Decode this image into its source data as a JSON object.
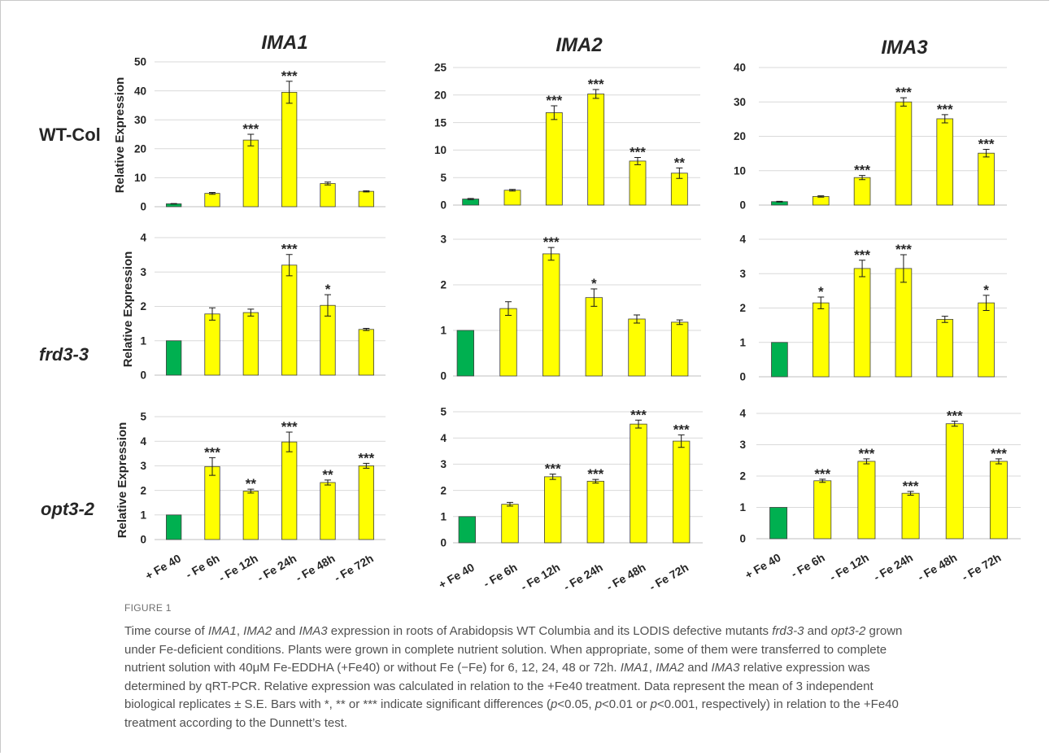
{
  "chart_data": {
    "type": "bar",
    "columns": [
      "IMA1",
      "IMA2",
      "IMA3"
    ],
    "rows": [
      "WT-Col",
      "frd3-3",
      "opt3-2"
    ],
    "ylabel": "Relative Expression",
    "categories": [
      "+ Fe 40",
      "- Fe 6h",
      "- Fe 12h",
      "- Fe 24h",
      "- Fe 48h",
      "- Fe 72h"
    ],
    "bar_colors": [
      "#00b050",
      "#ffff00",
      "#ffff00",
      "#ffff00",
      "#ffff00",
      "#ffff00"
    ],
    "bar_outline_color": "#404040",
    "grid": true,
    "panels": [
      {
        "values": [
          1.0,
          4.6,
          23.0,
          39.5,
          8.0,
          5.3
        ],
        "errors": [
          0.1,
          0.3,
          2.0,
          3.8,
          0.5,
          0.2
        ],
        "significance": [
          "",
          "",
          "***",
          "***",
          "",
          ""
        ],
        "ylim": [
          0,
          50
        ],
        "yticks": [
          0,
          10,
          20,
          30,
          40,
          50
        ]
      },
      {
        "values": [
          1.1,
          2.7,
          16.8,
          20.2,
          8.0,
          5.8
        ],
        "errors": [
          0.1,
          0.15,
          1.25,
          0.8,
          0.65,
          0.95
        ],
        "significance": [
          "",
          "",
          "***",
          "***",
          "***",
          "**"
        ],
        "ylim": [
          0,
          25
        ],
        "yticks": [
          0,
          5,
          10,
          15,
          20,
          25
        ]
      },
      {
        "values": [
          1.0,
          2.5,
          8.0,
          30.0,
          25.1,
          15.1
        ],
        "errors": [
          0.1,
          0.2,
          0.6,
          1.2,
          1.2,
          1.1
        ],
        "significance": [
          "",
          "",
          "***",
          "***",
          "***",
          "***"
        ],
        "ylim": [
          0,
          40
        ],
        "yticks": [
          0,
          10,
          20,
          30,
          40
        ]
      },
      {
        "values": [
          1.0,
          1.78,
          1.82,
          3.2,
          2.03,
          1.33
        ],
        "errors": [
          0,
          0.18,
          0.1,
          0.31,
          0.31,
          0.03
        ],
        "significance": [
          "",
          "",
          "",
          "***",
          "*",
          ""
        ],
        "ylim": [
          0,
          4
        ],
        "yticks": [
          0,
          1,
          2,
          3,
          4
        ]
      },
      {
        "values": [
          1.0,
          1.48,
          2.68,
          1.72,
          1.25,
          1.18
        ],
        "errors": [
          0,
          0.15,
          0.14,
          0.19,
          0.09,
          0.05
        ],
        "significance": [
          "",
          "",
          "***",
          "*",
          "",
          ""
        ],
        "ylim": [
          0,
          3
        ],
        "yticks": [
          0,
          1,
          2,
          3
        ]
      },
      {
        "values": [
          1.0,
          2.15,
          3.15,
          3.15,
          1.67,
          2.15
        ],
        "errors": [
          0,
          0.17,
          0.24,
          0.4,
          0.09,
          0.22
        ],
        "significance": [
          "",
          "*",
          "***",
          "***",
          "",
          "*"
        ],
        "ylim": [
          0,
          4
        ],
        "yticks": [
          0,
          1,
          2,
          3,
          4
        ]
      },
      {
        "values": [
          1.0,
          2.97,
          1.97,
          3.97,
          2.32,
          3.0
        ],
        "errors": [
          0,
          0.36,
          0.08,
          0.4,
          0.1,
          0.1
        ],
        "significance": [
          "",
          "***",
          "**",
          "***",
          "**",
          "***"
        ],
        "ylim": [
          0,
          5
        ],
        "yticks": [
          0,
          1,
          2,
          3,
          4,
          5
        ]
      },
      {
        "values": [
          1.0,
          1.47,
          2.52,
          2.35,
          4.53,
          3.88
        ],
        "errors": [
          0,
          0.07,
          0.1,
          0.07,
          0.15,
          0.24
        ],
        "significance": [
          "",
          "",
          "***",
          "***",
          "***",
          "***"
        ],
        "ylim": [
          0,
          5
        ],
        "yticks": [
          0,
          1,
          2,
          3,
          4,
          5
        ]
      },
      {
        "values": [
          1.0,
          1.85,
          2.47,
          1.45,
          3.67,
          2.47
        ],
        "errors": [
          0,
          0.05,
          0.08,
          0.06,
          0.08,
          0.08
        ],
        "significance": [
          "",
          "***",
          "***",
          "***",
          "***",
          "***"
        ],
        "ylim": [
          0,
          4
        ],
        "yticks": [
          0,
          1,
          2,
          3,
          4
        ]
      }
    ]
  },
  "caption": {
    "label": "FIGURE 1",
    "lines": [
      [
        {
          "text": "Time course of "
        },
        {
          "text": "IMA1",
          "italic": true
        },
        {
          "text": ", "
        },
        {
          "text": "IMA2",
          "italic": true
        },
        {
          "text": " and "
        },
        {
          "text": "IMA3",
          "italic": true
        },
        {
          "text": " expression in roots of Arabidopsis WT Columbia and its LODIS defective mutants "
        },
        {
          "text": "frd3-3",
          "italic": true
        },
        {
          "text": " and "
        },
        {
          "text": "opt3-2",
          "italic": true
        },
        {
          "text": " grown"
        }
      ],
      [
        {
          "text": "under Fe-deficient conditions. Plants were grown in complete nutrient solution. When appropriate, some of them were transferred to complete"
        }
      ],
      [
        {
          "text": "nutrient solution with 40μM Fe-EDDHA (+Fe40) or without Fe (−Fe) for 6, 12, 24, 48 or 72h. "
        },
        {
          "text": "IMA1",
          "italic": true
        },
        {
          "text": ", "
        },
        {
          "text": "IMA2",
          "italic": true
        },
        {
          "text": " and "
        },
        {
          "text": "IMA3",
          "italic": true
        },
        {
          "text": " relative expression was"
        }
      ],
      [
        {
          "text": "determined by qRT-PCR. Relative expression was calculated in relation to the +Fe40 treatment. Data represent the mean of 3 independent"
        }
      ],
      [
        {
          "text": "biological replicates ± S.E. Bars with *, ** or *** indicate significant differences ("
        },
        {
          "text": "p",
          "italic": true
        },
        {
          "text": "<0.05, "
        },
        {
          "text": "p",
          "italic": true
        },
        {
          "text": "<0.01 or "
        },
        {
          "text": "p",
          "italic": true
        },
        {
          "text": "<0.001, respectively) in relation to the +Fe40"
        }
      ],
      [
        {
          "text": "treatment according to the Dunnett’s test."
        }
      ]
    ]
  }
}
